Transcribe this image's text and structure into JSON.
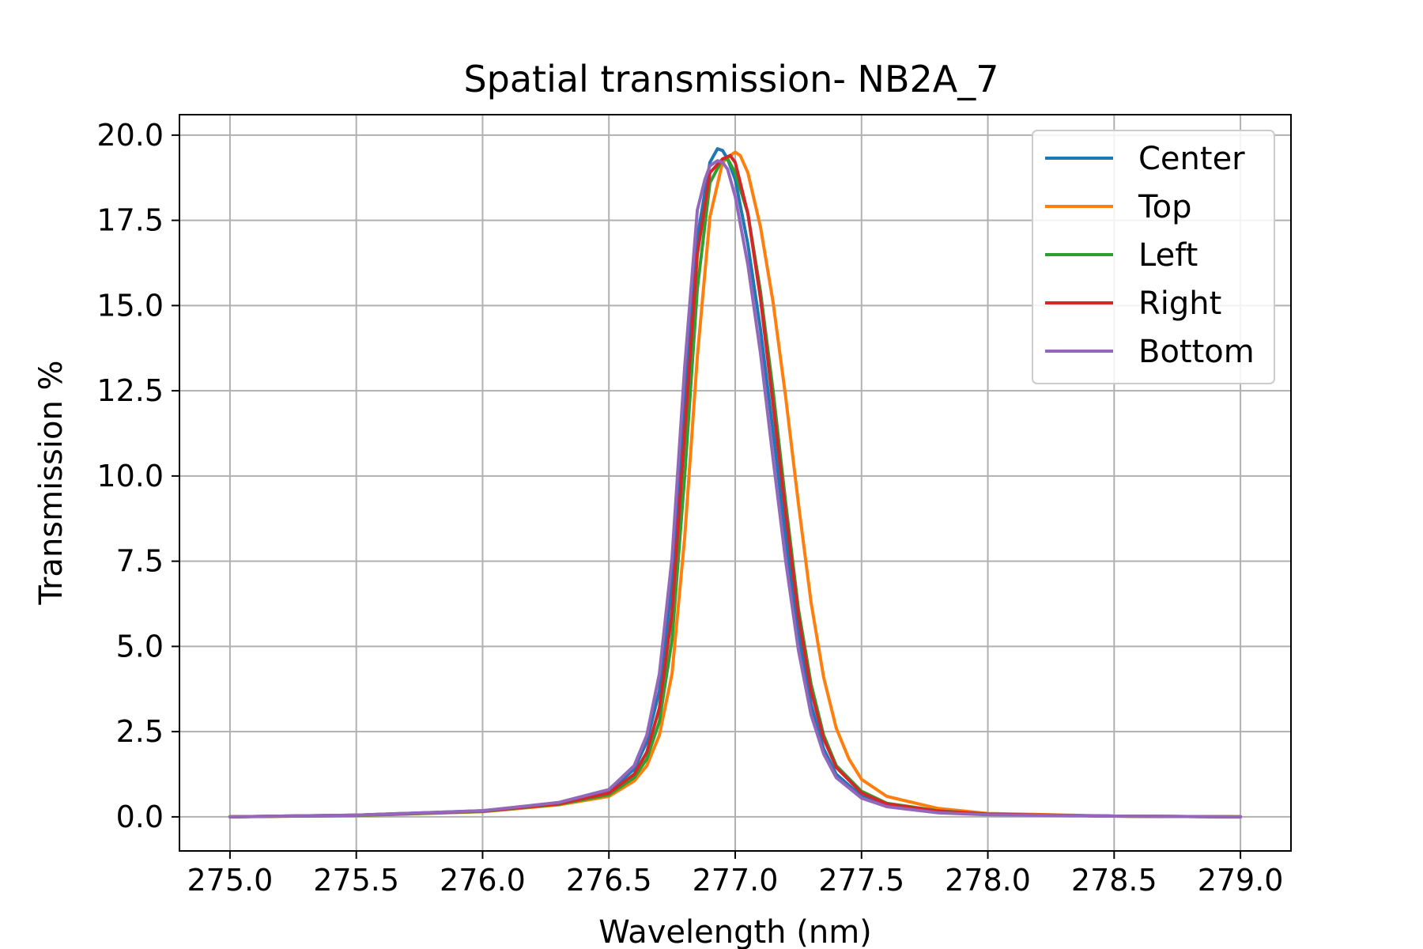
{
  "chart_data": {
    "type": "line",
    "title": "Spatial transmission- NB2A_7",
    "xlabel": "Wavelength (nm)",
    "ylabel": "Transmission %",
    "xlim": [
      274.8,
      279.2
    ],
    "ylim": [
      -1.0,
      20.6
    ],
    "xticks": [
      "275.0",
      "275.5",
      "276.0",
      "276.5",
      "277.0",
      "277.5",
      "278.0",
      "278.5",
      "279.0"
    ],
    "yticks": [
      "0.0",
      "2.5",
      "5.0",
      "7.5",
      "10.0",
      "12.5",
      "15.0",
      "17.5",
      "20.0"
    ],
    "grid": true,
    "legend_position": "top-right",
    "series": [
      {
        "name": "Center",
        "color": "#1f77b4",
        "x": [
          275.0,
          275.5,
          276.0,
          276.3,
          276.5,
          276.6,
          276.65,
          276.7,
          276.75,
          276.8,
          276.85,
          276.9,
          276.93,
          276.95,
          276.97,
          277.0,
          277.05,
          277.1,
          277.15,
          277.2,
          277.25,
          277.3,
          277.35,
          277.4,
          277.5,
          277.6,
          277.8,
          278.0,
          278.5,
          279.0
        ],
        "y": [
          0.0,
          0.05,
          0.18,
          0.4,
          0.75,
          1.4,
          2.2,
          3.7,
          6.8,
          12.5,
          17.0,
          19.2,
          19.6,
          19.55,
          19.3,
          18.7,
          16.8,
          14.3,
          11.3,
          8.2,
          5.4,
          3.3,
          2.0,
          1.25,
          0.6,
          0.35,
          0.15,
          0.08,
          0.02,
          0.0
        ]
      },
      {
        "name": "Top",
        "color": "#ff7f0e",
        "x": [
          275.0,
          275.5,
          276.0,
          276.3,
          276.5,
          276.6,
          276.65,
          276.7,
          276.75,
          276.8,
          276.85,
          276.9,
          276.95,
          276.98,
          277.0,
          277.02,
          277.05,
          277.1,
          277.15,
          277.2,
          277.25,
          277.3,
          277.35,
          277.4,
          277.45,
          277.5,
          277.6,
          277.8,
          278.0,
          278.5,
          279.0
        ],
        "y": [
          0.0,
          0.04,
          0.15,
          0.35,
          0.6,
          1.05,
          1.5,
          2.4,
          4.2,
          8.2,
          13.5,
          17.6,
          19.2,
          19.4,
          19.5,
          19.4,
          18.9,
          17.3,
          15.1,
          12.3,
          9.2,
          6.3,
          4.1,
          2.6,
          1.7,
          1.1,
          0.6,
          0.25,
          0.1,
          0.02,
          0.0
        ]
      },
      {
        "name": "Left",
        "color": "#2ca02c",
        "x": [
          275.0,
          275.5,
          276.0,
          276.3,
          276.5,
          276.6,
          276.65,
          276.7,
          276.75,
          276.8,
          276.85,
          276.9,
          276.95,
          276.97,
          277.0,
          277.05,
          277.1,
          277.15,
          277.2,
          277.25,
          277.3,
          277.35,
          277.4,
          277.5,
          277.6,
          277.8,
          278.0,
          278.5,
          279.0
        ],
        "y": [
          0.0,
          0.04,
          0.16,
          0.37,
          0.65,
          1.15,
          1.7,
          2.8,
          5.2,
          10.0,
          15.5,
          18.6,
          19.3,
          19.3,
          18.9,
          17.7,
          15.4,
          12.5,
          9.2,
          6.1,
          3.9,
          2.4,
          1.5,
          0.75,
          0.4,
          0.18,
          0.08,
          0.02,
          0.0
        ]
      },
      {
        "name": "Right",
        "color": "#d62728",
        "x": [
          275.0,
          275.5,
          276.0,
          276.3,
          276.5,
          276.6,
          276.65,
          276.7,
          276.75,
          276.8,
          276.85,
          276.9,
          276.95,
          276.98,
          277.0,
          277.05,
          277.1,
          277.15,
          277.2,
          277.25,
          277.3,
          277.35,
          277.4,
          277.5,
          277.6,
          277.8,
          278.0,
          278.5,
          279.0
        ],
        "y": [
          0.0,
          0.05,
          0.17,
          0.38,
          0.7,
          1.25,
          1.9,
          3.2,
          6.0,
          11.3,
          16.5,
          18.9,
          19.3,
          19.4,
          19.2,
          17.7,
          15.2,
          12.1,
          8.9,
          5.9,
          3.7,
          2.3,
          1.45,
          0.7,
          0.38,
          0.17,
          0.08,
          0.02,
          0.0
        ]
      },
      {
        "name": "Bottom",
        "color": "#9467bd",
        "x": [
          275.0,
          275.5,
          276.0,
          276.3,
          276.5,
          276.6,
          276.65,
          276.7,
          276.75,
          276.8,
          276.85,
          276.88,
          276.9,
          276.93,
          276.95,
          276.97,
          277.0,
          277.05,
          277.1,
          277.15,
          277.2,
          277.25,
          277.3,
          277.35,
          277.4,
          277.5,
          277.6,
          277.8,
          278.0,
          278.5,
          279.0
        ],
        "y": [
          0.0,
          0.05,
          0.18,
          0.42,
          0.8,
          1.5,
          2.4,
          4.2,
          7.6,
          13.2,
          17.8,
          18.7,
          19.1,
          19.25,
          19.2,
          19.0,
          18.2,
          16.2,
          13.6,
          10.5,
          7.5,
          4.9,
          3.0,
          1.85,
          1.15,
          0.55,
          0.3,
          0.12,
          0.06,
          0.02,
          0.0
        ]
      }
    ]
  }
}
